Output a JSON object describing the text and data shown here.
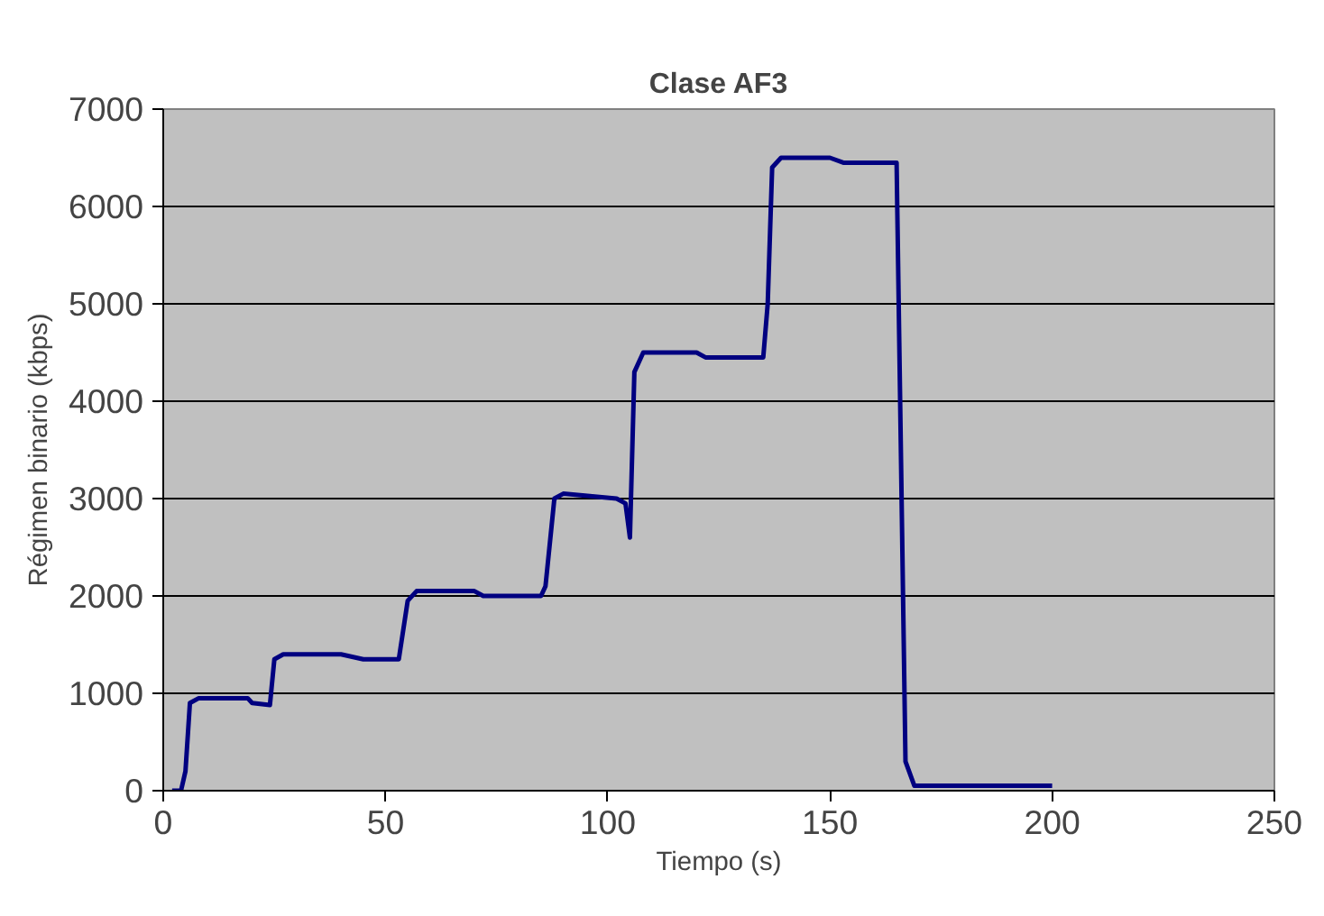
{
  "chart_data": {
    "type": "line",
    "title": "Clase AF3",
    "xlabel": "Tiempo (s)",
    "ylabel": "Régimen binario (kbps)",
    "xlim": [
      0,
      250
    ],
    "xticks": [
      0,
      50,
      100,
      150,
      200,
      250
    ],
    "ylim": [
      0,
      7000
    ],
    "yticks": [
      0,
      1000,
      2000,
      3000,
      4000,
      5000,
      6000,
      7000
    ],
    "grid": "y",
    "marker": "none",
    "line_style": "solid",
    "series": [
      {
        "color": "#000080",
        "x": [
          2,
          4,
          5,
          6,
          8,
          19,
          20,
          24,
          25,
          27,
          40,
          45,
          53,
          55,
          57,
          70,
          72,
          85,
          86,
          88,
          90,
          102,
          104,
          105,
          106,
          108,
          120,
          122,
          135,
          136,
          137,
          139,
          150,
          153,
          165,
          167,
          169,
          200
        ],
        "values": [
          0,
          0,
          200,
          900,
          950,
          950,
          900,
          880,
          1350,
          1400,
          1400,
          1350,
          1350,
          1950,
          2050,
          2050,
          2000,
          2000,
          2100,
          3000,
          3050,
          3000,
          2950,
          2600,
          4300,
          4500,
          4500,
          4450,
          4450,
          5000,
          6400,
          6500,
          6500,
          6450,
          6450,
          300,
          50,
          50
        ]
      }
    ]
  }
}
